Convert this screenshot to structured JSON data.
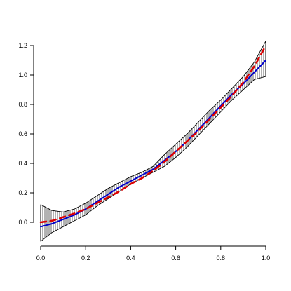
{
  "chart_data": {
    "type": "line",
    "title": "",
    "xlabel": "",
    "ylabel": "",
    "xlim": [
      0,
      1
    ],
    "ylim": [
      -0.13,
      1.23
    ],
    "x_ticks": [
      {
        "value": 0.0,
        "label": "0.0"
      },
      {
        "value": 0.2,
        "label": "0.2"
      },
      {
        "value": 0.4,
        "label": "0.4"
      },
      {
        "value": 0.6,
        "label": "0.6"
      },
      {
        "value": 0.8,
        "label": "0.8"
      },
      {
        "value": 1.0,
        "label": "1.0"
      }
    ],
    "y_ticks": [
      {
        "value": 0.0,
        "label": "0.0"
      },
      {
        "value": 0.2,
        "label": "0.2"
      },
      {
        "value": 0.4,
        "label": "0.4"
      },
      {
        "value": 0.6,
        "label": "0.6"
      },
      {
        "value": 0.8,
        "label": "0.8"
      },
      {
        "value": 1.0,
        "label": "1.0"
      },
      {
        "value": 1.2,
        "label": "1.2"
      }
    ],
    "grid": false,
    "legend": "none",
    "series": [
      {
        "style": "solid",
        "color": "#0000cc",
        "x": [
          0.0,
          0.05,
          0.1,
          0.15,
          0.2,
          0.25,
          0.3,
          0.35,
          0.4,
          0.45,
          0.5,
          0.55,
          0.6,
          0.65,
          0.7,
          0.75,
          0.8,
          0.85,
          0.9,
          0.95,
          1.0
        ],
        "y": [
          -0.03,
          -0.01,
          0.02,
          0.05,
          0.09,
          0.14,
          0.19,
          0.24,
          0.28,
          0.32,
          0.36,
          0.42,
          0.48,
          0.55,
          0.63,
          0.71,
          0.79,
          0.87,
          0.94,
          1.02,
          1.1
        ]
      },
      {
        "style": "dashed",
        "color": "#dd0000",
        "x": [
          0.0,
          0.05,
          0.1,
          0.15,
          0.2,
          0.25,
          0.3,
          0.35,
          0.4,
          0.45,
          0.5,
          0.55,
          0.6,
          0.65,
          0.7,
          0.75,
          0.8,
          0.85,
          0.9,
          0.95,
          1.0
        ],
        "y": [
          0.0,
          0.01,
          0.035,
          0.06,
          0.09,
          0.13,
          0.17,
          0.21,
          0.26,
          0.3,
          0.35,
          0.41,
          0.48,
          0.55,
          0.62,
          0.7,
          0.78,
          0.86,
          0.95,
          1.06,
          1.2
        ]
      }
    ],
    "confidence_band": {
      "fill": "vertical-hatch",
      "color": "#000000",
      "x": [
        0.0,
        0.05,
        0.1,
        0.15,
        0.2,
        0.25,
        0.3,
        0.35,
        0.4,
        0.45,
        0.5,
        0.55,
        0.6,
        0.65,
        0.7,
        0.75,
        0.8,
        0.85,
        0.9,
        0.95,
        1.0
      ],
      "lower": [
        -0.13,
        -0.07,
        -0.03,
        0.01,
        0.05,
        0.11,
        0.16,
        0.21,
        0.26,
        0.3,
        0.34,
        0.38,
        0.44,
        0.51,
        0.59,
        0.67,
        0.75,
        0.83,
        0.9,
        0.97,
        0.99
      ],
      "upper": [
        0.12,
        0.08,
        0.07,
        0.09,
        0.13,
        0.18,
        0.23,
        0.27,
        0.31,
        0.34,
        0.38,
        0.46,
        0.53,
        0.6,
        0.68,
        0.76,
        0.83,
        0.91,
        0.99,
        1.09,
        1.23
      ]
    }
  }
}
